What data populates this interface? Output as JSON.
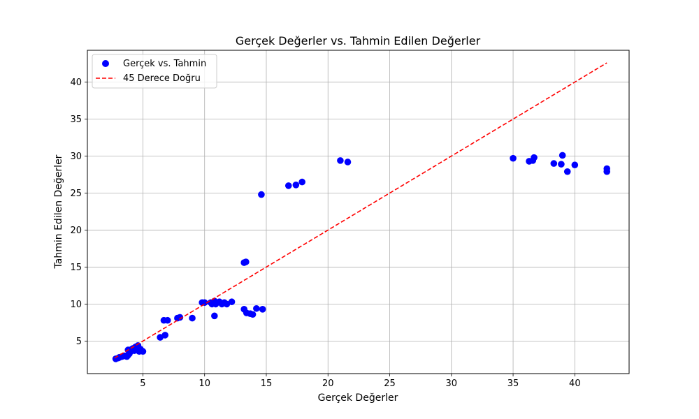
{
  "chart_data": {
    "type": "scatter",
    "title": "Gerçek Değerler vs. Tahmin Edilen Değerler",
    "xlabel": "Gerçek Değerler",
    "ylabel": "Tahmin Edilen Değerler",
    "xlim": [
      0.5,
      44.4
    ],
    "ylim": [
      0.6,
      44.3
    ],
    "xticks": [
      5,
      10,
      15,
      20,
      25,
      30,
      35,
      40
    ],
    "yticks": [
      5,
      10,
      15,
      20,
      25,
      30,
      35,
      40
    ],
    "grid": true,
    "legend_position": "top-left",
    "series": [
      {
        "name": "Gerçek vs. Tahmin",
        "kind": "scatter",
        "color": "#0000ff",
        "points": [
          [
            2.8,
            2.6
          ],
          [
            3.0,
            2.7
          ],
          [
            3.1,
            2.8
          ],
          [
            3.3,
            2.9
          ],
          [
            3.5,
            3.0
          ],
          [
            3.7,
            2.9
          ],
          [
            3.8,
            3.1
          ],
          [
            3.9,
            3.3
          ],
          [
            3.8,
            3.8
          ],
          [
            4.0,
            3.6
          ],
          [
            4.1,
            3.9
          ],
          [
            4.2,
            4.0
          ],
          [
            4.3,
            3.7
          ],
          [
            4.4,
            4.2
          ],
          [
            4.5,
            3.8
          ],
          [
            4.6,
            4.4
          ],
          [
            4.7,
            3.6
          ],
          [
            4.8,
            3.9
          ],
          [
            4.9,
            3.7
          ],
          [
            5.0,
            3.6
          ],
          [
            6.4,
            5.5
          ],
          [
            6.8,
            5.8
          ],
          [
            6.7,
            7.8
          ],
          [
            7.0,
            7.8
          ],
          [
            7.8,
            8.1
          ],
          [
            8.0,
            8.2
          ],
          [
            9.0,
            8.1
          ],
          [
            9.8,
            10.2
          ],
          [
            10.0,
            10.2
          ],
          [
            10.5,
            10.2
          ],
          [
            10.6,
            10.0
          ],
          [
            10.8,
            10.4
          ],
          [
            10.9,
            10.0
          ],
          [
            11.0,
            10.2
          ],
          [
            11.2,
            10.3
          ],
          [
            11.4,
            10.0
          ],
          [
            11.6,
            10.2
          ],
          [
            11.8,
            10.0
          ],
          [
            12.2,
            10.3
          ],
          [
            10.8,
            8.4
          ],
          [
            13.2,
            15.6
          ],
          [
            13.35,
            15.7
          ],
          [
            13.2,
            9.3
          ],
          [
            13.4,
            8.8
          ],
          [
            13.7,
            8.7
          ],
          [
            13.9,
            8.6
          ],
          [
            14.2,
            9.4
          ],
          [
            14.7,
            9.3
          ],
          [
            14.6,
            24.8
          ],
          [
            16.8,
            26.0
          ],
          [
            17.4,
            26.1
          ],
          [
            17.9,
            26.5
          ],
          [
            21.0,
            29.4
          ],
          [
            21.6,
            29.2
          ],
          [
            35.0,
            29.7
          ],
          [
            36.3,
            29.3
          ],
          [
            36.6,
            29.4
          ],
          [
            36.7,
            29.8
          ],
          [
            38.3,
            29.0
          ],
          [
            38.9,
            28.9
          ],
          [
            39.0,
            30.1
          ],
          [
            39.4,
            27.9
          ],
          [
            40.0,
            28.8
          ],
          [
            42.6,
            28.3
          ],
          [
            42.6,
            27.9
          ]
        ]
      },
      {
        "name": "45 Derece Doğru",
        "kind": "line",
        "color": "#ff0000",
        "style": "dashed",
        "points": [
          [
            2.7,
            2.7
          ],
          [
            42.6,
            42.6
          ]
        ]
      }
    ]
  }
}
